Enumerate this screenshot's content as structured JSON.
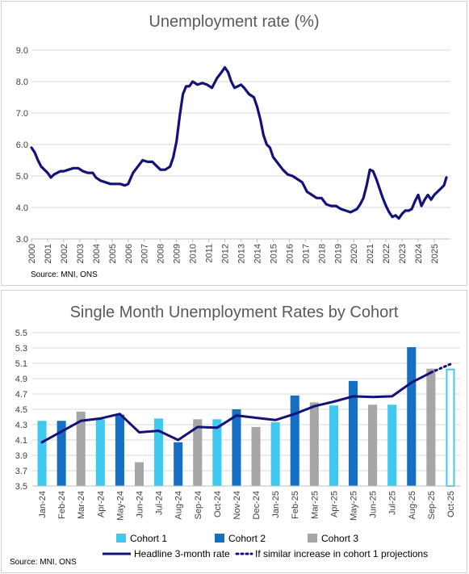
{
  "chart_data": [
    {
      "type": "line",
      "title": "Unemployment rate (%)",
      "source": "Source: MNI, ONS",
      "ylim": [
        3.0,
        9.0
      ],
      "yticks": [
        "3.0",
        "4.0",
        "5.0",
        "6.0",
        "7.0",
        "8.0",
        "9.0"
      ],
      "xticks": [
        "2000",
        "2001",
        "2002",
        "2003",
        "2004",
        "2005",
        "2006",
        "2007",
        "2008",
        "2009",
        "2010",
        "2011",
        "2012",
        "2013",
        "2014",
        "2015",
        "2016",
        "2017",
        "2018",
        "2019",
        "2020",
        "2021",
        "2022",
        "2023",
        "2024",
        "2025"
      ],
      "grid": true,
      "line_color": "#14127a",
      "series": [
        {
          "x": [
            2000.0,
            2000.2,
            2000.4,
            2000.6,
            2000.8,
            2001.0,
            2001.2,
            2001.4,
            2001.6,
            2001.8,
            2002.0,
            2002.3,
            2002.6,
            2002.9,
            2003.2,
            2003.5,
            2003.8,
            2004.0,
            2004.3,
            2004.6,
            2004.9,
            2005.2,
            2005.5,
            2005.8,
            2006.0,
            2006.3,
            2006.6,
            2006.9,
            2007.2,
            2007.5,
            2007.8,
            2008.0,
            2008.3,
            2008.6,
            2008.8,
            2009.0,
            2009.2,
            2009.4,
            2009.6,
            2009.8,
            2010.0,
            2010.3,
            2010.6,
            2010.9,
            2011.2,
            2011.5,
            2011.8,
            2012.0,
            2012.2,
            2012.4,
            2012.6,
            2012.8,
            2013.0,
            2013.2,
            2013.5,
            2013.8,
            2014.0,
            2014.2,
            2014.4,
            2014.6,
            2014.8,
            2015.0,
            2015.3,
            2015.6,
            2015.9,
            2016.2,
            2016.5,
            2016.8,
            2017.1,
            2017.4,
            2017.7,
            2018.0,
            2018.3,
            2018.6,
            2018.9,
            2019.2,
            2019.5,
            2019.8,
            2020.0,
            2020.2,
            2020.4,
            2020.6,
            2020.8,
            2021.0,
            2021.2,
            2021.4,
            2021.6,
            2021.8,
            2022.0,
            2022.2,
            2022.4,
            2022.6,
            2022.8,
            2023.0,
            2023.2,
            2023.4,
            2023.6,
            2023.8,
            2024.0,
            2024.2,
            2024.4,
            2024.6,
            2024.8,
            2025.0,
            2025.2,
            2025.4,
            2025.6,
            2025.75
          ],
          "y": [
            5.9,
            5.75,
            5.5,
            5.3,
            5.2,
            5.1,
            4.95,
            5.05,
            5.1,
            5.15,
            5.15,
            5.2,
            5.25,
            5.25,
            5.15,
            5.1,
            5.1,
            4.95,
            4.85,
            4.8,
            4.75,
            4.75,
            4.75,
            4.7,
            4.75,
            5.1,
            5.3,
            5.5,
            5.45,
            5.45,
            5.3,
            5.2,
            5.2,
            5.3,
            5.6,
            6.1,
            6.9,
            7.6,
            7.85,
            7.85,
            8.0,
            7.9,
            7.95,
            7.9,
            7.8,
            8.1,
            8.3,
            8.45,
            8.3,
            8.0,
            7.8,
            7.85,
            7.9,
            7.8,
            7.6,
            7.5,
            7.2,
            6.8,
            6.3,
            6.0,
            5.9,
            5.6,
            5.4,
            5.2,
            5.05,
            5.0,
            4.9,
            4.8,
            4.5,
            4.4,
            4.3,
            4.3,
            4.1,
            4.05,
            4.05,
            3.95,
            3.9,
            3.85,
            3.9,
            3.95,
            4.1,
            4.3,
            4.7,
            5.2,
            5.15,
            4.9,
            4.6,
            4.3,
            4.05,
            3.85,
            3.7,
            3.75,
            3.65,
            3.8,
            3.9,
            3.9,
            3.95,
            4.2,
            4.4,
            4.05,
            4.25,
            4.4,
            4.25,
            4.4,
            4.5,
            4.6,
            4.7,
            4.95
          ]
        }
      ]
    },
    {
      "type": "bar",
      "title": "Single Month Unemployment Rates by Cohort",
      "source": "Source: MNI, ONS",
      "ylim": [
        3.5,
        5.5
      ],
      "yticks": [
        "3.5",
        "3.7",
        "3.9",
        "4.1",
        "4.3",
        "4.5",
        "4.7",
        "4.9",
        "5.1",
        "5.3",
        "5.5"
      ],
      "categories": [
        "Jan-24",
        "Feb-24",
        "Mar-24",
        "Apr-24",
        "May-24",
        "Jun-24",
        "Jul-24",
        "Aug-24",
        "Sep-24",
        "Oct-24",
        "Nov-24",
        "Dec-24",
        "Jan-25",
        "Feb-25",
        "Mar-25",
        "Apr-25",
        "May-25",
        "Jun-25",
        "Jul-25",
        "Aug-25",
        "Sep-25",
        "Oct-25"
      ],
      "cohorts": [
        1,
        2,
        3,
        1,
        2,
        3,
        1,
        2,
        3,
        1,
        2,
        3,
        1,
        2,
        3,
        1,
        2,
        3,
        1,
        2,
        3,
        1
      ],
      "values": [
        4.35,
        4.35,
        4.47,
        4.37,
        4.43,
        3.81,
        4.38,
        4.07,
        4.37,
        4.37,
        4.5,
        4.27,
        4.33,
        4.68,
        4.59,
        4.55,
        4.87,
        4.56,
        4.56,
        5.31,
        5.03,
        5.03
      ],
      "projected": [
        false,
        false,
        false,
        false,
        false,
        false,
        false,
        false,
        false,
        false,
        false,
        false,
        false,
        false,
        false,
        false,
        false,
        false,
        false,
        false,
        false,
        true
      ],
      "cohort_colors": {
        "1": "#3fc8f0",
        "2": "#1570c4",
        "3": "#a6a6a6"
      },
      "line": {
        "name": "Headline 3-month rate",
        "values": [
          4.07,
          4.21,
          4.35,
          4.38,
          4.44,
          4.2,
          4.22,
          4.1,
          4.27,
          4.26,
          4.42,
          4.39,
          4.36,
          4.44,
          4.54,
          4.6,
          4.67,
          4.66,
          4.67,
          4.85,
          4.98
        ],
        "color": "#14127a"
      },
      "projection": {
        "name": "If similar increase in cohort 1 projections",
        "values": [
          4.98,
          5.09
        ],
        "from_index": 20
      },
      "legend": {
        "cohort1": "Cohort 1",
        "cohort2": "Cohort 2",
        "cohort3": "Cohort 3",
        "headline": "Headline 3-month rate",
        "projection": "If similar increase in cohort 1 projections"
      }
    }
  ]
}
